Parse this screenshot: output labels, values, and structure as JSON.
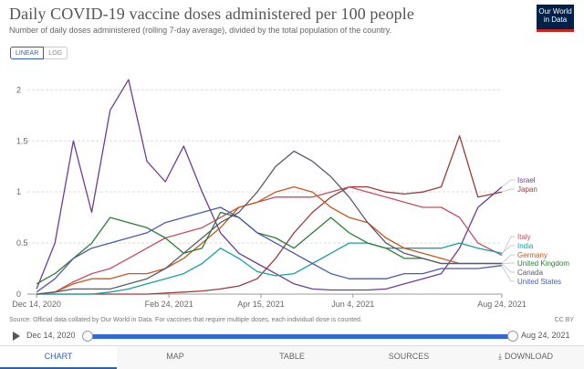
{
  "header": {
    "title": "Daily COVID-19 vaccine doses administered per 100 people",
    "subtitle": "Number of daily doses administered (rolling 7-day average), divided by the total population of the country.",
    "logo_line1": "Our World",
    "logo_line2": "in Data"
  },
  "scale_toggle": {
    "linear": "LINEAR",
    "log": "LOG"
  },
  "chart_data": {
    "type": "line",
    "title": "Daily COVID-19 vaccine doses administered per 100 people",
    "xlabel": "",
    "ylabel": "",
    "ylim": [
      0,
      2.2
    ],
    "x": [
      0,
      10,
      20,
      30,
      40,
      50,
      60,
      70,
      80,
      90,
      100,
      110,
      120,
      130,
      140,
      150,
      160,
      170,
      180,
      190,
      200,
      210,
      220,
      230,
      240,
      253
    ],
    "x_range": [
      -5,
      253
    ],
    "x_ticks": [
      {
        "label": "Dec 14, 2020",
        "day": 0
      },
      {
        "label": "Feb 24, 2021",
        "day": 72
      },
      {
        "label": "Apr 15, 2021",
        "day": 122
      },
      {
        "label": "Jun 4, 2021",
        "day": 172
      },
      {
        "label": "Aug 24, 2021",
        "day": 253
      }
    ],
    "y_ticks": [
      0,
      0.5,
      1,
      1.5,
      2
    ],
    "series": [
      {
        "name": "Israel",
        "color": "#6d3e91",
        "values": [
          0.05,
          0.5,
          1.5,
          0.8,
          1.8,
          2.1,
          1.3,
          1.1,
          1.45,
          1.0,
          0.6,
          0.4,
          0.3,
          0.2,
          0.1,
          0.05,
          0.04,
          0.04,
          0.04,
          0.05,
          0.1,
          0.15,
          0.2,
          0.45,
          0.85,
          1.05
        ]
      },
      {
        "name": "Japan",
        "color": "#9a3c3c",
        "values": [
          0,
          0,
          0,
          0,
          0,
          0,
          0,
          0.01,
          0.02,
          0.03,
          0.05,
          0.08,
          0.15,
          0.35,
          0.6,
          0.8,
          0.95,
          1.05,
          1.05,
          1.0,
          0.98,
          1.0,
          1.05,
          1.55,
          0.95,
          1.0
        ]
      },
      {
        "name": "Italy",
        "color": "#c15065",
        "values": [
          0,
          0.02,
          0.12,
          0.2,
          0.25,
          0.35,
          0.45,
          0.55,
          0.6,
          0.65,
          0.75,
          0.85,
          0.9,
          0.95,
          0.95,
          0.95,
          1.0,
          1.05,
          1.0,
          0.95,
          0.9,
          0.85,
          0.85,
          0.75,
          0.5,
          0.38
        ]
      },
      {
        "name": "India",
        "color": "#18a0a0",
        "values": [
          0,
          0,
          0,
          0,
          0.02,
          0.05,
          0.1,
          0.15,
          0.2,
          0.3,
          0.45,
          0.35,
          0.22,
          0.18,
          0.2,
          0.3,
          0.4,
          0.5,
          0.5,
          0.45,
          0.45,
          0.45,
          0.45,
          0.5,
          0.45,
          0.4
        ]
      },
      {
        "name": "Germany",
        "color": "#c45a1d",
        "values": [
          0,
          0.02,
          0.1,
          0.15,
          0.15,
          0.2,
          0.2,
          0.25,
          0.35,
          0.5,
          0.65,
          0.85,
          0.9,
          1.0,
          1.05,
          1.0,
          0.85,
          0.75,
          0.7,
          0.55,
          0.45,
          0.4,
          0.35,
          0.3,
          0.3,
          0.3
        ]
      },
      {
        "name": "United Kingdom",
        "color": "#2f7b3a",
        "values": [
          0.1,
          0.2,
          0.35,
          0.5,
          0.75,
          0.7,
          0.65,
          0.55,
          0.4,
          0.45,
          0.8,
          0.75,
          0.6,
          0.55,
          0.45,
          0.6,
          0.75,
          0.6,
          0.5,
          0.45,
          0.35,
          0.35,
          0.3,
          0.3,
          0.3,
          0.3
        ]
      },
      {
        "name": "Canada",
        "color": "#5a5a6b",
        "values": [
          0,
          0.02,
          0.05,
          0.05,
          0.05,
          0.1,
          0.15,
          0.25,
          0.4,
          0.55,
          0.7,
          0.8,
          1.0,
          1.25,
          1.4,
          1.3,
          1.15,
          0.95,
          0.7,
          0.5,
          0.4,
          0.35,
          0.3,
          0.3,
          0.3,
          0.3
        ]
      },
      {
        "name": "United States",
        "color": "#4e5ba6",
        "values": [
          0.02,
          0.15,
          0.35,
          0.45,
          0.5,
          0.55,
          0.6,
          0.7,
          0.75,
          0.8,
          0.85,
          0.75,
          0.6,
          0.5,
          0.4,
          0.3,
          0.2,
          0.15,
          0.15,
          0.15,
          0.2,
          0.2,
          0.25,
          0.25,
          0.25,
          0.28
        ]
      }
    ]
  },
  "footer": {
    "source": "Source: Official data collated by Our World in Data. For vaccines that require multiple doses, each individual dose is counted.",
    "license": "CC BY"
  },
  "timeline": {
    "start_label": "Dec 14, 2020",
    "end_label": "Aug 24, 2021"
  },
  "tabs": {
    "chart": "CHART",
    "map": "MAP",
    "table": "TABLE",
    "sources": "SOURCES",
    "download": "DOWNLOAD"
  }
}
